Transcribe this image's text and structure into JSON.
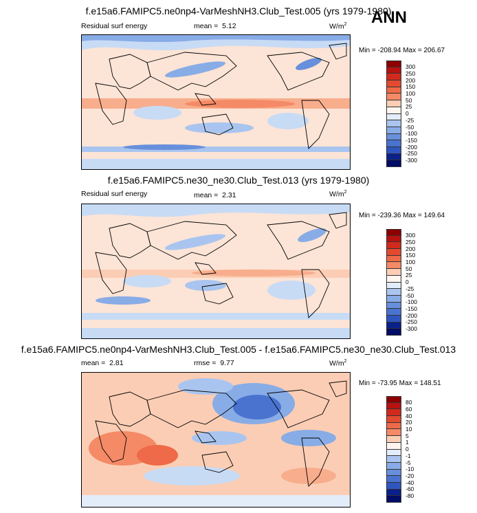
{
  "season": "ANN",
  "colors": {
    "warm": [
      "#fdf5ee",
      "#fce4d6",
      "#fbcdb4",
      "#f8ad8c",
      "#f48a66",
      "#ee6a48",
      "#e44a30",
      "#d12a1c",
      "#b81210",
      "#8e0000"
    ],
    "cool": [
      "#e3edfa",
      "#c8dbf5",
      "#a9c5ef",
      "#88ace6",
      "#678fdb",
      "#4a73d0",
      "#2f56c0",
      "#1a3aa5",
      "#0a208a",
      "#000c66"
    ],
    "land_line": "#000000"
  },
  "panels": [
    {
      "title": "f.e15a6.FAMIPC5.ne0np4-VarMeshNH3.Club_Test.005 (yrs 1979-1980)",
      "left_label": "Residual surf energy",
      "stat_label": "mean =",
      "stat_value": "5.12",
      "units": "W/m",
      "units_exp": "2",
      "min_max": "Min = -208.94 Max = 206.67",
      "colorbar_ticks": [
        "300",
        "250",
        "200",
        "150",
        "100",
        "50",
        "25",
        "0",
        "-25",
        "-50",
        "-100",
        "-150",
        "-200",
        "-250",
        "-300"
      ]
    },
    {
      "title": "f.e15a6.FAMIPC5.ne30_ne30.Club_Test.013 (yrs 1979-1980)",
      "left_label": "Residual surf energy",
      "stat_label": "mean =",
      "stat_value": "2.31",
      "units": "W/m",
      "units_exp": "2",
      "min_max": "Min = -239.36 Max = 149.64",
      "colorbar_ticks": [
        "300",
        "250",
        "200",
        "150",
        "100",
        "50",
        "25",
        "0",
        "-25",
        "-50",
        "-100",
        "-150",
        "-200",
        "-250",
        "-300"
      ]
    },
    {
      "title": "f.e15a6.FAMIPC5.ne0np4-VarMeshNH3.Club_Test.005 - f.e15a6.FAMIPC5.ne30_ne30.Club_Test.013",
      "left_label": "mean =",
      "left_value": "2.81",
      "stat_label": "rmse =",
      "stat_value": "9.77",
      "units": "W/m",
      "units_exp": "2",
      "min_max": "Min = -73.95 Max = 148.51",
      "colorbar_ticks": [
        "80",
        "60",
        "40",
        "20",
        "10",
        "5",
        "1",
        "0",
        "-1",
        "-5",
        "-10",
        "-20",
        "-40",
        "-60",
        "-80"
      ]
    }
  ],
  "chart_data": [
    {
      "type": "heatmap",
      "title": "f.e15a6.FAMIPC5.ne0np4-VarMeshNH3.Club_Test.005 (yrs 1979-1980)",
      "variable": "Residual surf energy",
      "mean": 5.12,
      "units": "W/m2",
      "min": -208.94,
      "max": 206.67,
      "levels": [
        -300,
        -250,
        -200,
        -150,
        -100,
        -50,
        -25,
        0,
        25,
        50,
        100,
        150,
        200,
        250,
        300
      ]
    },
    {
      "type": "heatmap",
      "title": "f.e15a6.FAMIPC5.ne30_ne30.Club_Test.013 (yrs 1979-1980)",
      "variable": "Residual surf energy",
      "mean": 2.31,
      "units": "W/m2",
      "min": -239.36,
      "max": 149.64,
      "levels": [
        -300,
        -250,
        -200,
        -150,
        -100,
        -50,
        -25,
        0,
        25,
        50,
        100,
        150,
        200,
        250,
        300
      ]
    },
    {
      "type": "heatmap",
      "title": "f.e15a6.FAMIPC5.ne0np4-VarMeshNH3.Club_Test.005 - f.e15a6.FAMIPC5.ne30_ne30.Club_Test.013",
      "mean": 2.81,
      "rmse": 9.77,
      "units": "W/m2",
      "min": -73.95,
      "max": 148.51,
      "levels": [
        -80,
        -60,
        -40,
        -20,
        -10,
        -5,
        -1,
        0,
        1,
        5,
        10,
        20,
        40,
        60,
        80
      ]
    }
  ]
}
